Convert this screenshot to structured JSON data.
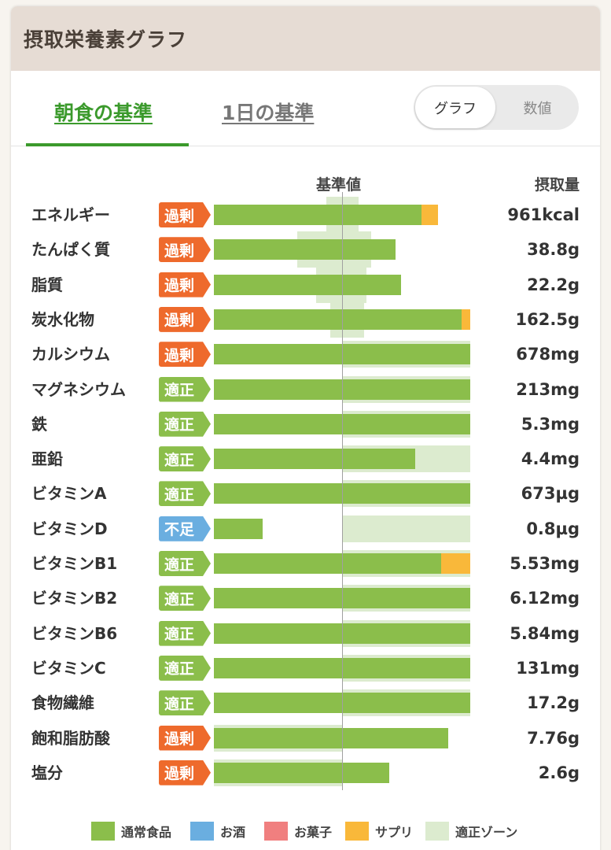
{
  "header": {
    "title": "摂取栄養素グラフ"
  },
  "tabs": [
    {
      "label": "朝食の基準",
      "active": true
    },
    {
      "label": "1日の基準",
      "active": false
    }
  ],
  "view_toggle": {
    "options": [
      "グラフ",
      "数値"
    ],
    "selected": "グラフ"
  },
  "columns": {
    "standard": "基準値",
    "intake": "摂取量"
  },
  "colors": {
    "normal_food": "#8bbe4b",
    "alcohol": "#6aaee0",
    "snacks": "#f07f7f",
    "supplement": "#f9b83a",
    "proper_zone": "#dcebcf",
    "excess_badge": "#ee6a2c",
    "proper_badge": "#8bbe4b",
    "deficit_badge": "#6aaee0"
  },
  "chart_data": {
    "type": "bar",
    "orientation": "horizontal",
    "stacked": true,
    "x_unit": "percent of standard",
    "standard_value": 100,
    "xlim": [
      0,
      200
    ],
    "categories": [
      "エネルギー",
      "たんぱく質",
      "脂質",
      "炭水化物",
      "カルシウム",
      "マグネシウム",
      "鉄",
      "亜鉛",
      "ビタミンA",
      "ビタミンD",
      "ビタミンB1",
      "ビタミンB2",
      "ビタミンB6",
      "ビタミンC",
      "食物繊維",
      "飽和脂肪酸",
      "塩分"
    ],
    "status": [
      "過剰",
      "過剰",
      "過剰",
      "過剰",
      "過剰",
      "適正",
      "適正",
      "適正",
      "適正",
      "不足",
      "適正",
      "適正",
      "適正",
      "適正",
      "適正",
      "過剰",
      "過剰"
    ],
    "status_key": [
      "excess",
      "excess",
      "excess",
      "excess",
      "excess",
      "proper",
      "proper",
      "proper",
      "proper",
      "deficit",
      "proper",
      "proper",
      "proper",
      "proper",
      "proper",
      "excess",
      "excess"
    ],
    "intake_labels": [
      "961kcal",
      "38.8g",
      "22.2g",
      "162.5g",
      "678mg",
      "213mg",
      "5.3mg",
      "4.4mg",
      "673µg",
      "0.8µg",
      "5.53mg",
      "6.12mg",
      "5.84mg",
      "131mg",
      "17.2g",
      "7.76g",
      "2.6g"
    ],
    "series": [
      {
        "name": "通常食品",
        "values": [
          162,
          142,
          146,
          193,
          200,
          200,
          200,
          157,
          200,
          38,
          177,
          200,
          200,
          200,
          200,
          183,
          137
        ]
      },
      {
        "name": "サプリ",
        "values": [
          13,
          0,
          0,
          7,
          0,
          0,
          0,
          0,
          0,
          0,
          23,
          0,
          0,
          0,
          0,
          0,
          0
        ]
      }
    ],
    "proper_zone": [
      [
        88,
        113
      ],
      [
        65,
        123
      ],
      [
        80,
        119
      ],
      [
        91,
        117
      ],
      [
        100,
        200
      ],
      [
        100,
        200
      ],
      [
        100,
        200
      ],
      [
        100,
        200
      ],
      [
        100,
        200
      ],
      [
        100,
        200
      ],
      [
        100,
        200
      ],
      [
        100,
        200
      ],
      [
        100,
        200
      ],
      [
        100,
        200
      ],
      [
        100,
        200
      ],
      [
        0,
        100
      ],
      [
        0,
        100
      ]
    ],
    "legend": [
      "通常食品",
      "お酒",
      "お菓子",
      "サプリ",
      "適正ゾーン"
    ],
    "legend_keys": [
      "normal_food",
      "alcohol",
      "snacks",
      "supplement",
      "proper_zone"
    ]
  }
}
